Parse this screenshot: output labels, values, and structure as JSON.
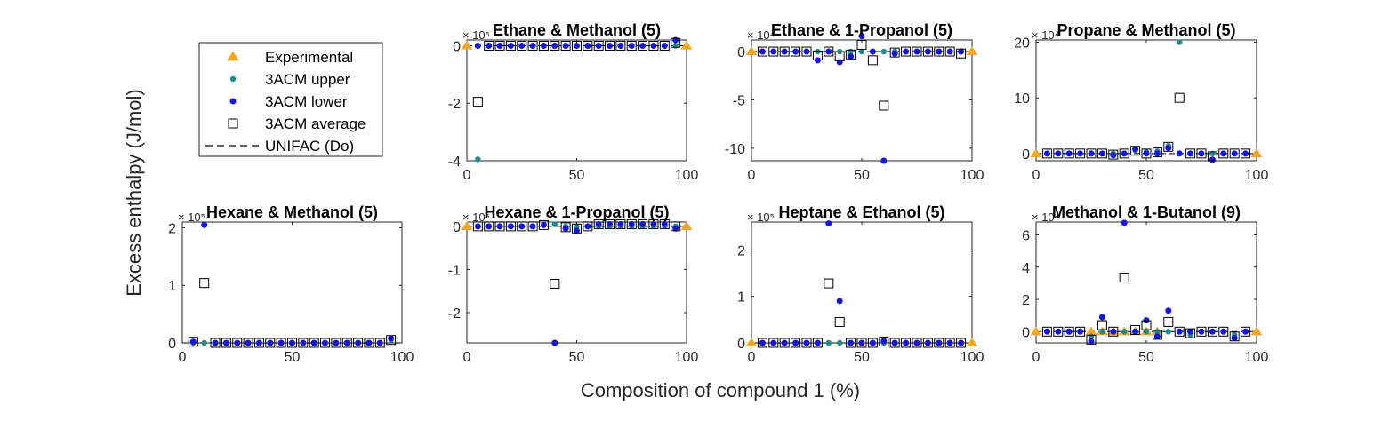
{
  "figure": {
    "ylabel": "Excess enthalpy (J/mol)",
    "xlabel": "Composition of compound 1 (%)"
  },
  "legend": {
    "items": [
      {
        "label": "Experimental",
        "marker": "triangle",
        "color": "#F5A623"
      },
      {
        "label": "3ACM upper",
        "marker": "dot-small",
        "color": "#1F8C8C"
      },
      {
        "label": "3ACM lower",
        "marker": "dot",
        "color": "#1515E0"
      },
      {
        "label": "3ACM average",
        "marker": "square",
        "color": "#000000"
      },
      {
        "label": "UNIFAC (Do)",
        "marker": "dash",
        "color": "#000000"
      }
    ]
  },
  "colors": {
    "experimental": "#F5A623",
    "upper": "#1F8C8C",
    "lower": "#1515E0",
    "average": "#000000"
  },
  "chart_data": [
    {
      "type": "scatter",
      "title": "Ethane & Methanol (5)",
      "exponent": "× 10⁵",
      "xlim": [
        0,
        100
      ],
      "ylim": [
        -4,
        0.2
      ],
      "xticks": [
        "0",
        "50",
        "100"
      ],
      "xtick_values": [
        0,
        50,
        100
      ],
      "yticks": [
        "0",
        "-2",
        "-4"
      ],
      "ytick_values": [
        0,
        -2,
        -4
      ],
      "experimental": {
        "x": [
          0,
          100
        ],
        "y": [
          0,
          0
        ]
      },
      "upper": {
        "x": [
          5,
          10,
          15,
          20,
          25,
          30,
          35,
          40,
          45,
          50,
          55,
          60,
          65,
          70,
          75,
          80,
          85,
          90,
          95
        ],
        "y": [
          -3.95,
          0,
          0,
          0,
          0,
          0,
          0,
          0,
          0,
          0,
          0,
          0,
          0,
          0,
          0,
          0,
          0,
          0,
          0
        ]
      },
      "lower": {
        "x": [
          5,
          10,
          15,
          20,
          25,
          30,
          35,
          40,
          45,
          50,
          55,
          60,
          65,
          70,
          75,
          80,
          85,
          90,
          95
        ],
        "y": [
          0,
          0,
          0,
          0,
          0,
          0,
          0,
          0,
          0,
          0,
          0,
          0,
          0,
          0,
          0,
          0,
          0,
          0,
          0.2
        ]
      },
      "average": {
        "x": [
          5,
          10,
          15,
          20,
          25,
          30,
          35,
          40,
          45,
          50,
          55,
          60,
          65,
          70,
          75,
          80,
          85,
          90,
          95
        ],
        "y": [
          -1.95,
          0,
          0,
          0,
          0,
          0,
          0,
          0,
          0,
          0,
          0,
          0,
          0,
          0,
          0,
          0,
          0,
          0,
          0.1
        ]
      }
    },
    {
      "type": "scatter",
      "title": "Ethane & 1-Propanol (5)",
      "exponent": "× 10⁴",
      "xlim": [
        0,
        100
      ],
      "ylim": [
        -11.3,
        1.2
      ],
      "xticks": [
        "0",
        "50",
        "100"
      ],
      "xtick_values": [
        0,
        50,
        100
      ],
      "yticks": [
        "0",
        "-5",
        "-10"
      ],
      "ytick_values": [
        0,
        -5,
        -10
      ],
      "experimental": {
        "x": [
          0,
          100
        ],
        "y": [
          0,
          0
        ]
      },
      "upper": {
        "x": [
          5,
          10,
          15,
          20,
          25,
          30,
          35,
          40,
          45,
          50,
          55,
          60,
          65,
          70,
          75,
          80,
          85,
          90,
          95
        ],
        "y": [
          0,
          0,
          0,
          0,
          0,
          0,
          0,
          0,
          0,
          0,
          0,
          0,
          0,
          0,
          0,
          0,
          0,
          0,
          0
        ]
      },
      "lower": {
        "x": [
          5,
          10,
          15,
          20,
          25,
          30,
          35,
          40,
          45,
          50,
          55,
          60,
          65,
          70,
          75,
          80,
          85,
          90,
          95
        ],
        "y": [
          0,
          0,
          0,
          0,
          0,
          -0.9,
          0,
          -1.1,
          -0.5,
          1.6,
          0,
          -11.3,
          -0.2,
          0,
          0,
          0,
          0,
          0,
          0
        ]
      },
      "average": {
        "x": [
          5,
          10,
          15,
          20,
          25,
          30,
          35,
          40,
          45,
          50,
          55,
          60,
          65,
          70,
          75,
          80,
          85,
          90,
          95
        ],
        "y": [
          0,
          0,
          0,
          0,
          0,
          -0.4,
          0,
          -0.5,
          -0.3,
          0.7,
          -0.9,
          -5.6,
          -0.1,
          0,
          0,
          0,
          0,
          0,
          -0.2
        ]
      }
    },
    {
      "type": "scatter",
      "title": "Propane & Methanol (5)",
      "exponent": "× 10⁴",
      "xlim": [
        0,
        100
      ],
      "ylim": [
        -1.3,
        20.4
      ],
      "xticks": [
        "0",
        "50",
        "100"
      ],
      "xtick_values": [
        0,
        50,
        100
      ],
      "yticks": [
        "0",
        "10",
        "20"
      ],
      "ytick_values": [
        0,
        10,
        20
      ],
      "experimental": {
        "x": [
          0,
          100
        ],
        "y": [
          0,
          0
        ]
      },
      "upper": {
        "x": [
          5,
          10,
          15,
          20,
          25,
          30,
          35,
          40,
          45,
          50,
          55,
          60,
          65,
          70,
          75,
          80,
          85,
          90,
          95
        ],
        "y": [
          0,
          0,
          0,
          0,
          0,
          0,
          0,
          0,
          0.6,
          0.3,
          0.4,
          1.4,
          20,
          0,
          0,
          0,
          0,
          0,
          0
        ]
      },
      "lower": {
        "x": [
          5,
          10,
          15,
          20,
          25,
          30,
          35,
          40,
          45,
          50,
          55,
          60,
          65,
          70,
          75,
          80,
          85,
          90,
          95
        ],
        "y": [
          0,
          0,
          0,
          0,
          0,
          0,
          -0.3,
          0,
          0.8,
          0,
          0,
          1.0,
          0,
          0,
          0,
          -1.1,
          0,
          0,
          0
        ]
      },
      "average": {
        "x": [
          5,
          10,
          15,
          20,
          25,
          30,
          35,
          40,
          45,
          50,
          55,
          60,
          65,
          70,
          75,
          80,
          85,
          90,
          95
        ],
        "y": [
          0,
          0,
          0,
          0,
          0,
          0,
          -0.2,
          0,
          0.5,
          0,
          0.2,
          1.2,
          10,
          0,
          0,
          -0.5,
          0,
          0,
          0
        ]
      }
    },
    {
      "type": "scatter",
      "title": "Hexane & Methanol (5)",
      "exponent": "× 10⁵",
      "xlim": [
        0,
        100
      ],
      "ylim": [
        0,
        2.1
      ],
      "xticks": [
        "0",
        "50",
        "100"
      ],
      "xtick_values": [
        0,
        50,
        100
      ],
      "yticks": [
        "0",
        "1",
        "2"
      ],
      "ytick_values": [
        0,
        1,
        2
      ],
      "experimental": {
        "x": [],
        "y": []
      },
      "upper": {
        "x": [
          5,
          10,
          15,
          20,
          25,
          30,
          35,
          40,
          45,
          50,
          55,
          60,
          65,
          70,
          75,
          80,
          85,
          90,
          95
        ],
        "y": [
          0,
          0,
          0,
          0,
          0,
          0,
          0,
          0,
          0,
          0,
          0,
          0,
          0,
          0,
          0,
          0,
          0,
          0,
          0.05
        ]
      },
      "lower": {
        "x": [
          5,
          10,
          15,
          20,
          25,
          30,
          35,
          40,
          45,
          50,
          55,
          60,
          65,
          70,
          75,
          80,
          85,
          90,
          95
        ],
        "y": [
          0.02,
          2.05,
          0,
          0,
          0,
          0,
          0,
          0,
          0,
          0,
          0,
          0,
          0,
          0,
          0,
          0,
          0,
          0,
          0.08
        ]
      },
      "average": {
        "x": [
          5,
          10,
          15,
          20,
          25,
          30,
          35,
          40,
          45,
          50,
          55,
          60,
          65,
          70,
          75,
          80,
          85,
          90,
          95
        ],
        "y": [
          0.02,
          1.04,
          0,
          0,
          0,
          0,
          0,
          0,
          0,
          0,
          0,
          0,
          0,
          0,
          0,
          0,
          0,
          0,
          0.05
        ]
      }
    },
    {
      "type": "scatter",
      "title": "Hexane & 1-Propanol (5)",
      "exponent": "× 10⁵",
      "xlim": [
        0,
        100
      ],
      "ylim": [
        -2.7,
        0.1
      ],
      "xticks": [
        "0",
        "50",
        "100"
      ],
      "xtick_values": [
        0,
        50,
        100
      ],
      "yticks": [
        "0",
        "-1",
        "-2"
      ],
      "ytick_values": [
        0,
        -1,
        -2
      ],
      "experimental": {
        "x": [
          0,
          100
        ],
        "y": [
          0,
          0
        ]
      },
      "upper": {
        "x": [
          5,
          10,
          15,
          20,
          25,
          30,
          35,
          40,
          45,
          50,
          55,
          60,
          65,
          70,
          75,
          80,
          85,
          90,
          95
        ],
        "y": [
          0,
          0,
          0,
          0,
          0,
          0,
          0.03,
          0.05,
          0,
          0,
          0,
          0,
          0,
          0,
          0,
          0,
          0,
          0,
          0
        ]
      },
      "lower": {
        "x": [
          5,
          10,
          15,
          20,
          25,
          30,
          35,
          40,
          45,
          50,
          55,
          60,
          65,
          70,
          75,
          80,
          85,
          90,
          95
        ],
        "y": [
          0,
          0,
          0,
          0,
          0,
          0,
          0.03,
          -2.7,
          -0.05,
          -0.1,
          0,
          0.05,
          0.05,
          0.05,
          0.05,
          0.05,
          0.05,
          0.05,
          -0.05
        ]
      },
      "average": {
        "x": [
          5,
          10,
          15,
          20,
          25,
          30,
          35,
          40,
          45,
          50,
          55,
          60,
          65,
          70,
          75,
          80,
          85,
          90,
          95
        ],
        "y": [
          0,
          0,
          0,
          0,
          0,
          0,
          0.03,
          -1.33,
          -0.02,
          -0.05,
          0,
          0.05,
          0.05,
          0.05,
          0.05,
          0.05,
          0.05,
          0.05,
          0
        ]
      }
    },
    {
      "type": "scatter",
      "title": "Heptane & Ethanol (5)",
      "exponent": "× 10⁵",
      "xlim": [
        0,
        100
      ],
      "ylim": [
        0,
        2.6
      ],
      "xticks": [
        "0",
        "50",
        "100"
      ],
      "xtick_values": [
        0,
        50,
        100
      ],
      "yticks": [
        "0",
        "1",
        "2"
      ],
      "ytick_values": [
        0,
        1,
        2
      ],
      "experimental": {
        "x": [
          0,
          100
        ],
        "y": [
          0,
          0
        ]
      },
      "upper": {
        "x": [
          5,
          10,
          15,
          20,
          25,
          30,
          35,
          40,
          45,
          50,
          55,
          60,
          65,
          70,
          75,
          80,
          85,
          90,
          95
        ],
        "y": [
          0,
          0,
          0,
          0,
          0,
          0,
          0,
          0,
          0,
          0,
          0,
          0,
          0,
          0,
          0,
          0,
          0,
          0,
          0
        ]
      },
      "lower": {
        "x": [
          5,
          10,
          15,
          20,
          25,
          30,
          35,
          40,
          45,
          50,
          55,
          60,
          65,
          70,
          75,
          80,
          85,
          90,
          95
        ],
        "y": [
          0,
          0,
          0,
          0,
          0,
          0,
          2.57,
          0.9,
          0,
          0,
          0,
          0.04,
          0,
          0,
          0,
          0,
          0,
          0,
          0
        ]
      },
      "average": {
        "x": [
          5,
          10,
          15,
          20,
          25,
          30,
          35,
          40,
          45,
          50,
          55,
          60,
          65,
          70,
          75,
          80,
          85,
          90,
          95
        ],
        "y": [
          0,
          0,
          0,
          0,
          0,
          0,
          1.28,
          0.45,
          0,
          0,
          0,
          0.03,
          0,
          0,
          0,
          0,
          0,
          0,
          0
        ]
      }
    },
    {
      "type": "scatter",
      "title": "Methanol & 1-Butanol (9)",
      "exponent": "× 10⁴",
      "xlim": [
        0,
        100
      ],
      "ylim": [
        -0.7,
        6.8
      ],
      "xticks": [
        "0",
        "50",
        "100"
      ],
      "xtick_values": [
        0,
        50,
        100
      ],
      "yticks": [
        "0",
        "2",
        "4",
        "6"
      ],
      "ytick_values": [
        0,
        2,
        4,
        6
      ],
      "experimental": {
        "x": [
          0,
          25,
          30,
          35,
          40,
          45,
          50,
          55,
          100
        ],
        "y": [
          0,
          0,
          0,
          0,
          0,
          0,
          0,
          0,
          0
        ]
      },
      "upper": {
        "x": [
          5,
          10,
          15,
          20,
          25,
          30,
          35,
          40,
          45,
          50,
          55,
          60,
          65,
          70,
          75,
          80,
          85,
          90,
          95
        ],
        "y": [
          0,
          0,
          0,
          0,
          -0.3,
          0,
          0,
          0,
          0,
          0,
          0,
          0,
          0,
          -0.2,
          0,
          0,
          0,
          -0.2,
          0
        ]
      },
      "lower": {
        "x": [
          5,
          10,
          15,
          20,
          25,
          30,
          35,
          40,
          45,
          50,
          55,
          60,
          65,
          70,
          75,
          80,
          85,
          90,
          95
        ],
        "y": [
          0,
          0,
          0,
          0,
          -0.6,
          0.9,
          0,
          6.75,
          0,
          0.7,
          -0.3,
          1.3,
          0,
          0,
          0,
          0,
          0,
          -0.4,
          0
        ]
      },
      "average": {
        "x": [
          5,
          10,
          15,
          20,
          25,
          30,
          35,
          40,
          45,
          50,
          55,
          60,
          65,
          70,
          75,
          80,
          85,
          90,
          95
        ],
        "y": [
          0,
          0,
          0,
          0,
          -0.5,
          0.4,
          0,
          3.35,
          0.1,
          0.4,
          -0.2,
          0.6,
          0,
          -0.1,
          0,
          0,
          0,
          -0.3,
          0
        ]
      }
    }
  ]
}
